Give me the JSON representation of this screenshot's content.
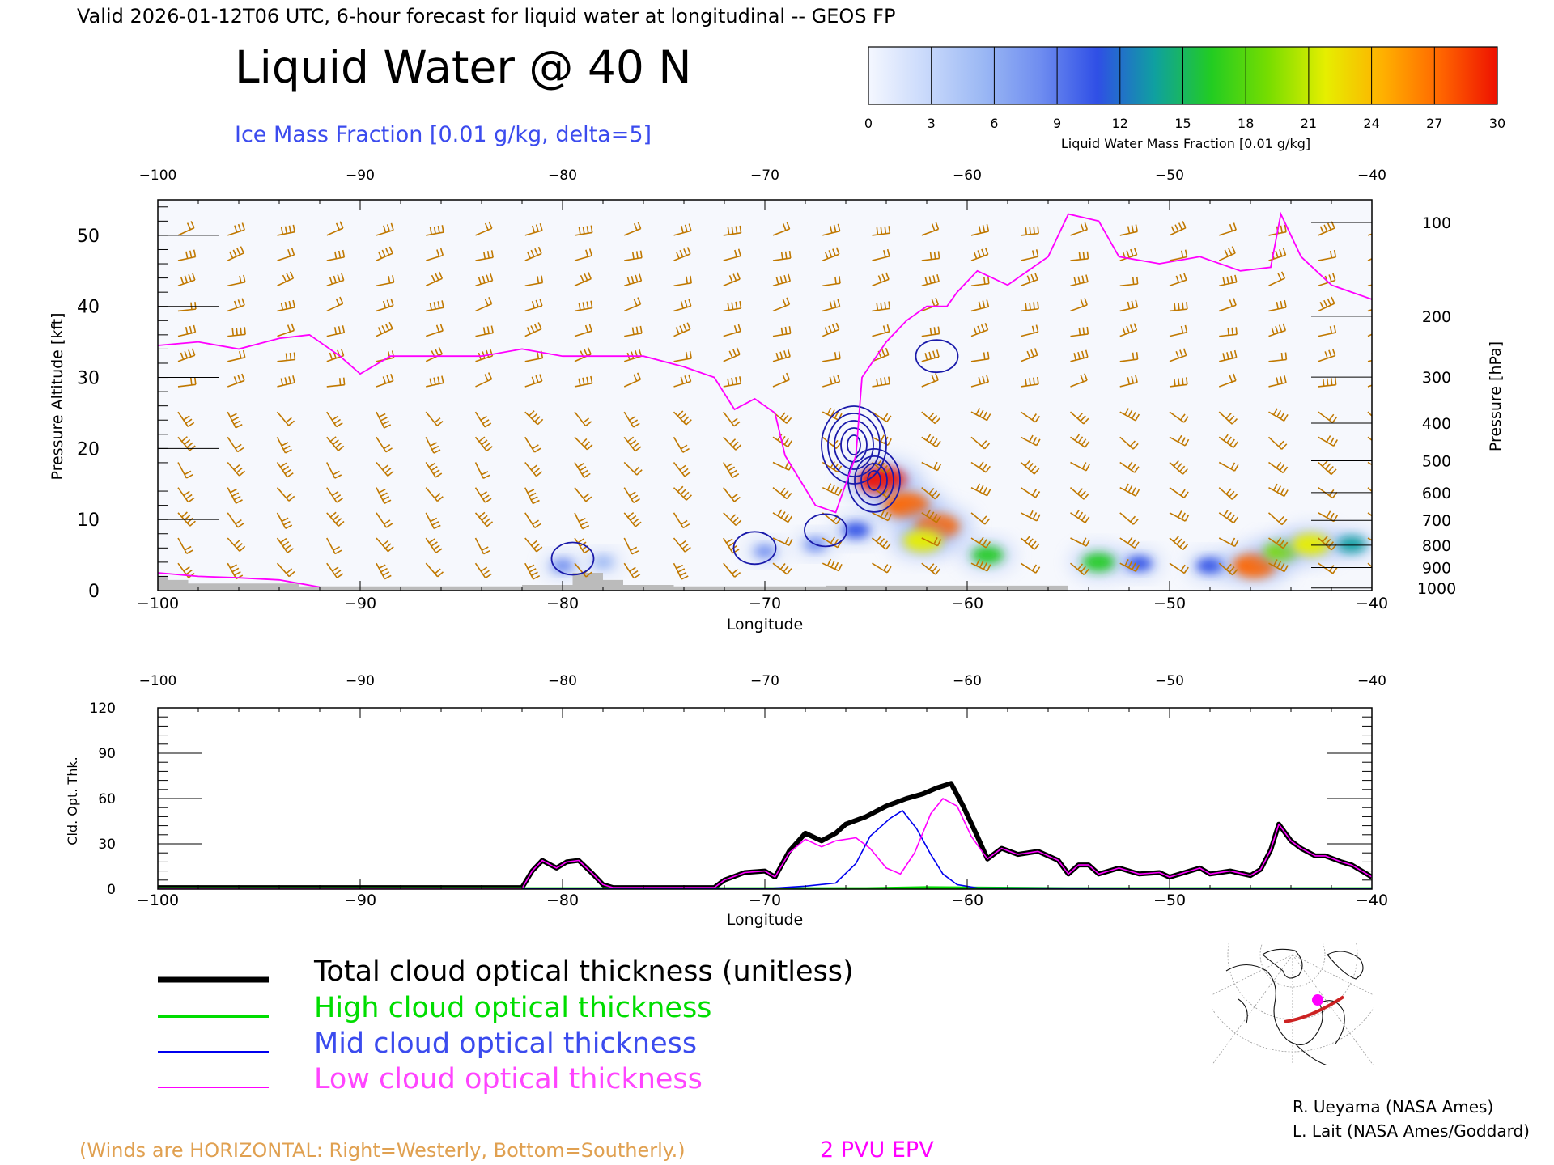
{
  "header": {
    "valid_line": "Valid 2026-01-12T06 UTC, 6-hour forecast for liquid water at longitudinal -- GEOS FP",
    "title": "Liquid Water @ 40 N",
    "subtitle": "Ice Mass Fraction [0.01 g/kg, delta=5]"
  },
  "colorbar": {
    "label": "Liquid Water Mass Fraction [0.01 g/kg]",
    "ticks": [
      "0",
      "3",
      "6",
      "9",
      "12",
      "15",
      "18",
      "21",
      "24",
      "27",
      "30"
    ],
    "colors": [
      "#f4f7ff",
      "#c9d9fb",
      "#9bb8f4",
      "#6f8df0",
      "#2f4fe6",
      "#0fa0a0",
      "#22cc22",
      "#77dd00",
      "#e6ee00",
      "#ffb000",
      "#ff6600",
      "#ee1100"
    ]
  },
  "colors": {
    "wind_barb": "#c07800",
    "tropopause": "#ff00ff",
    "ice_contour": "#1a1aaa",
    "terrain": "#bbbbbb",
    "total": "#000000",
    "high": "#00dd00",
    "mid": "#0000ee",
    "low": "#ff00ff"
  },
  "chart_data": [
    {
      "type": "heatmap",
      "xlabel": "Longitude",
      "ylabel": "Pressure Altitude [kft]",
      "ylabel_right": "Pressure [hPa]",
      "xlim": [
        -100,
        -40
      ],
      "ylim": [
        0,
        55
      ],
      "x_ticks": [
        "−100",
        "−90",
        "−80",
        "−70",
        "−60",
        "−50",
        "−40"
      ],
      "y_ticks": [
        "0",
        "10",
        "20",
        "30",
        "40",
        "50"
      ],
      "pressure_ticks": [
        "100",
        "200",
        "300",
        "400",
        "500",
        "600",
        "700",
        "800",
        "900",
        "1000"
      ],
      "pressure_levels": [
        100,
        200,
        300,
        400,
        500,
        600,
        700,
        800,
        900,
        1000
      ],
      "liquid_water_blobs": [
        {
          "lon": -64.2,
          "kft": 15.5,
          "value": 30
        },
        {
          "lon": -63.0,
          "kft": 12.0,
          "value": 28
        },
        {
          "lon": -61.5,
          "kft": 9.0,
          "value": 27
        },
        {
          "lon": -62.2,
          "kft": 7.0,
          "value": 22
        },
        {
          "lon": -65.5,
          "kft": 8.5,
          "value": 12
        },
        {
          "lon": -67.5,
          "kft": 6.5,
          "value": 8
        },
        {
          "lon": -70.0,
          "kft": 5.5,
          "value": 7
        },
        {
          "lon": -80.0,
          "kft": 3.5,
          "value": 8
        },
        {
          "lon": -78.0,
          "kft": 4.0,
          "value": 6
        },
        {
          "lon": -59.0,
          "kft": 5.0,
          "value": 16
        },
        {
          "lon": -53.5,
          "kft": 4.0,
          "value": 17
        },
        {
          "lon": -51.5,
          "kft": 3.8,
          "value": 11
        },
        {
          "lon": -48.0,
          "kft": 3.5,
          "value": 12
        },
        {
          "lon": -45.8,
          "kft": 3.5,
          "value": 26
        },
        {
          "lon": -44.5,
          "kft": 5.5,
          "value": 18
        },
        {
          "lon": -43.0,
          "kft": 6.5,
          "value": 22
        },
        {
          "lon": -41.0,
          "kft": 6.5,
          "value": 14
        }
      ],
      "tropopause_2pvu_kft": [
        [
          -100,
          34.5
        ],
        [
          -98,
          35
        ],
        [
          -96,
          34
        ],
        [
          -94,
          35.5
        ],
        [
          -92.5,
          36
        ],
        [
          -91,
          33
        ],
        [
          -90,
          30.5
        ],
        [
          -88.5,
          33
        ],
        [
          -86,
          33
        ],
        [
          -84,
          33
        ],
        [
          -82,
          34
        ],
        [
          -80,
          33
        ],
        [
          -78,
          33
        ],
        [
          -76,
          33
        ],
        [
          -74,
          31.5
        ],
        [
          -72.5,
          30
        ],
        [
          -71.5,
          25.5
        ],
        [
          -70.5,
          27
        ],
        [
          -69.5,
          25
        ],
        [
          -69,
          19
        ],
        [
          -67.5,
          12
        ],
        [
          -66.5,
          11
        ],
        [
          -65.5,
          19
        ],
        [
          -65.2,
          30
        ],
        [
          -64,
          35
        ],
        [
          -63,
          38
        ],
        [
          -62,
          40
        ],
        [
          -61,
          40
        ],
        [
          -60.5,
          42
        ],
        [
          -59.5,
          45
        ],
        [
          -58,
          43
        ],
        [
          -56,
          47
        ],
        [
          -55,
          53
        ],
        [
          -53.5,
          52
        ],
        [
          -52.5,
          47
        ],
        [
          -50.5,
          46
        ],
        [
          -48.5,
          47
        ],
        [
          -46.5,
          45
        ],
        [
          -45,
          45.5
        ],
        [
          -44.5,
          53
        ],
        [
          -43.5,
          47
        ],
        [
          -42,
          43
        ],
        [
          -40,
          41
        ]
      ],
      "tropopause_low_kft": [
        [
          -100,
          2.5
        ],
        [
          -98,
          2
        ],
        [
          -96,
          1.8
        ],
        [
          -94,
          1.5
        ],
        [
          -92,
          0.5
        ]
      ],
      "ice_contours": [
        {
          "lon": -65.6,
          "kft": 20.5,
          "levels": 5
        },
        {
          "lon": -64.6,
          "kft": 15.5,
          "levels": 4
        },
        {
          "lon": -61.5,
          "kft": 33.0,
          "levels": 1
        },
        {
          "lon": -67.0,
          "kft": 8.5,
          "levels": 1
        },
        {
          "lon": -79.5,
          "kft": 4.5,
          "levels": 1
        },
        {
          "lon": -70.5,
          "kft": 6.0,
          "levels": 1
        }
      ],
      "terrain_kft": [
        [
          -100,
          2.0
        ],
        [
          -99.5,
          1.5
        ],
        [
          -98.5,
          1.0
        ],
        [
          -93,
          0.6
        ],
        [
          -82,
          0.8
        ],
        [
          -79.5,
          2.5
        ],
        [
          -78,
          1.5
        ],
        [
          -77,
          0.8
        ],
        [
          -74.5,
          0.6
        ],
        [
          -67,
          0.7
        ],
        [
          -55,
          0.4
        ]
      ]
    },
    {
      "type": "line",
      "xlabel": "Longitude",
      "ylabel": "Cld. Opt. Thk.",
      "xlim": [
        -100,
        -40
      ],
      "ylim": [
        0,
        120
      ],
      "x_ticks": [
        "−100",
        "−90",
        "−80",
        "−70",
        "−60",
        "−50",
        "−40"
      ],
      "y_ticks": [
        "0",
        "30",
        "60",
        "90",
        "120"
      ],
      "series": [
        {
          "name": "Total cloud optical thickness (unitless)",
          "key": "total",
          "points": [
            [
              -100,
              1
            ],
            [
              -82,
              1
            ],
            [
              -81.5,
              12
            ],
            [
              -81,
              19
            ],
            [
              -80.3,
              14
            ],
            [
              -79.8,
              18
            ],
            [
              -79.2,
              19
            ],
            [
              -78.5,
              10
            ],
            [
              -78,
              3
            ],
            [
              -77.5,
              1
            ],
            [
              -72.5,
              1
            ],
            [
              -72,
              6
            ],
            [
              -71,
              11
            ],
            [
              -70,
              12
            ],
            [
              -69.5,
              8
            ],
            [
              -68.8,
              25
            ],
            [
              -68,
              37
            ],
            [
              -67.2,
              32
            ],
            [
              -66.5,
              37
            ],
            [
              -66,
              43
            ],
            [
              -65,
              48
            ],
            [
              -64,
              55
            ],
            [
              -63,
              60
            ],
            [
              -62.2,
              63
            ],
            [
              -61.5,
              67
            ],
            [
              -60.8,
              70
            ],
            [
              -60.2,
              55
            ],
            [
              -59.5,
              35
            ],
            [
              -59,
              20
            ],
            [
              -58.3,
              27
            ],
            [
              -57.5,
              23
            ],
            [
              -56.5,
              25
            ],
            [
              -55.5,
              19
            ],
            [
              -55,
              10
            ],
            [
              -54.5,
              16
            ],
            [
              -54,
              16
            ],
            [
              -53.5,
              10
            ],
            [
              -53,
              12
            ],
            [
              -52.5,
              14
            ],
            [
              -51.5,
              10
            ],
            [
              -50.5,
              11
            ],
            [
              -50,
              8
            ],
            [
              -49,
              12
            ],
            [
              -48.5,
              14
            ],
            [
              -48,
              10
            ],
            [
              -47,
              12
            ],
            [
              -46,
              9
            ],
            [
              -45.5,
              13
            ],
            [
              -45,
              26
            ],
            [
              -44.6,
              43
            ],
            [
              -44,
              32
            ],
            [
              -43.5,
              27
            ],
            [
              -42.8,
              22
            ],
            [
              -42.3,
              22
            ],
            [
              -41.5,
              18
            ],
            [
              -41,
              16
            ],
            [
              -40.5,
              12
            ],
            [
              -40,
              8
            ]
          ]
        },
        {
          "name": "High cloud optical thickness",
          "key": "high",
          "points": [
            [
              -100,
              0.3
            ],
            [
              -65,
              0.3
            ],
            [
              -62,
              1
            ],
            [
              -60,
              0.8
            ],
            [
              -55,
              0.3
            ],
            [
              -40,
              0.3
            ]
          ]
        },
        {
          "name": "Mid cloud optical thickness",
          "key": "mid",
          "points": [
            [
              -100,
              0.3
            ],
            [
              -70,
              0.3
            ],
            [
              -68,
              2
            ],
            [
              -66.5,
              4
            ],
            [
              -65.5,
              17
            ],
            [
              -64.8,
              35
            ],
            [
              -63.8,
              47
            ],
            [
              -63.2,
              52
            ],
            [
              -62.5,
              40
            ],
            [
              -61.8,
              23
            ],
            [
              -61.2,
              10
            ],
            [
              -60.5,
              3
            ],
            [
              -59.5,
              0.8
            ],
            [
              -40,
              0.3
            ]
          ]
        },
        {
          "name": "Low cloud optical thickness",
          "key": "low",
          "points": [
            [
              -100,
              0.5
            ],
            [
              -82,
              0.5
            ],
            [
              -81.5,
              12
            ],
            [
              -81,
              19
            ],
            [
              -80.3,
              14
            ],
            [
              -79.8,
              18
            ],
            [
              -79.2,
              19
            ],
            [
              -78.5,
              10
            ],
            [
              -78,
              3
            ],
            [
              -77.5,
              1
            ],
            [
              -72.5,
              1
            ],
            [
              -72,
              6
            ],
            [
              -71,
              11
            ],
            [
              -70,
              12
            ],
            [
              -69.5,
              8
            ],
            [
              -68.8,
              24
            ],
            [
              -68,
              33
            ],
            [
              -67.2,
              28
            ],
            [
              -66.5,
              32
            ],
            [
              -65.5,
              34
            ],
            [
              -64.8,
              27
            ],
            [
              -64,
              14
            ],
            [
              -63.3,
              10
            ],
            [
              -62.6,
              24
            ],
            [
              -61.8,
              50
            ],
            [
              -61.2,
              60
            ],
            [
              -60.5,
              55
            ],
            [
              -59.8,
              35
            ],
            [
              -59,
              20
            ],
            [
              -58.3,
              27
            ],
            [
              -57.5,
              23
            ],
            [
              -56.5,
              25
            ],
            [
              -55.5,
              19
            ],
            [
              -55,
              10
            ],
            [
              -54.5,
              16
            ],
            [
              -54,
              16
            ],
            [
              -53.5,
              10
            ],
            [
              -53,
              12
            ],
            [
              -52.5,
              14
            ],
            [
              -51.5,
              10
            ],
            [
              -50.5,
              11
            ],
            [
              -50,
              8
            ],
            [
              -49,
              12
            ],
            [
              -48.5,
              14
            ],
            [
              -48,
              10
            ],
            [
              -47,
              12
            ],
            [
              -46,
              9
            ],
            [
              -45.5,
              13
            ],
            [
              -45,
              26
            ],
            [
              -44.6,
              43
            ],
            [
              -44,
              32
            ],
            [
              -43.5,
              27
            ],
            [
              -42.8,
              22
            ],
            [
              -42.3,
              22
            ],
            [
              -41.5,
              18
            ],
            [
              -41,
              16
            ],
            [
              -40.5,
              12
            ],
            [
              -40,
              8
            ]
          ]
        }
      ]
    }
  ],
  "legend": {
    "total": "Total cloud optical thickness (unitless)",
    "high": "High cloud optical thickness",
    "mid": "Mid cloud optical thickness",
    "low": "Low cloud optical thickness"
  },
  "footer": {
    "winds_note": "(Winds are HORIZONTAL: Right=Westerly, Bottom=Southerly.)",
    "epv": "2 PVU EPV",
    "credit1": "R. Ueyama (NASA Ames)",
    "credit2": "L. Lait (NASA Ames/Goddard)"
  }
}
